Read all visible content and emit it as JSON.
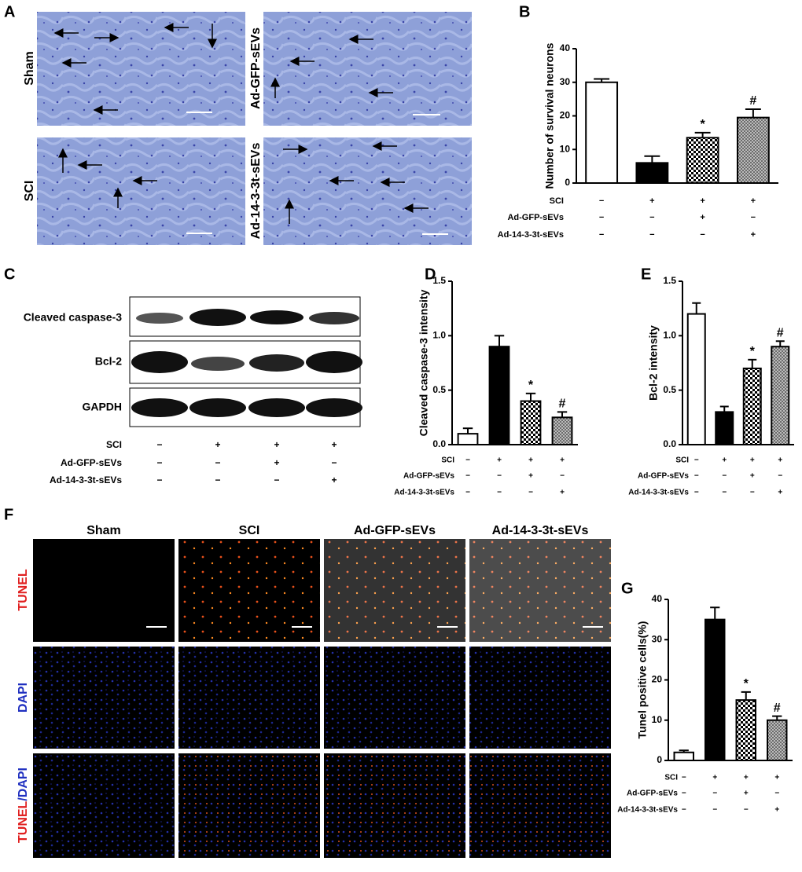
{
  "panel_labels": [
    "A",
    "B",
    "C",
    "D",
    "E",
    "F",
    "G"
  ],
  "panel_a": {
    "row_labels": [
      "Sham",
      "SCI",
      "Ad-GFP-sEVs",
      "Ad-14-3-3t-sEVs"
    ]
  },
  "panel_c": {
    "bands": [
      "Cleaved caspase-3",
      "Bcl-2",
      "GAPDH"
    ]
  },
  "panel_f": {
    "columns": [
      "Sham",
      "SCI",
      "Ad-GFP-sEVs",
      "Ad-14-3-3t-sEVs"
    ],
    "rows": [
      "TUNEL",
      "DAPI"
    ],
    "merged_row": [
      "TUNEL",
      "/DAPI"
    ]
  },
  "conditions": [
    {
      "label": "SCI",
      "marks": [
        "−",
        "+",
        "+",
        "+"
      ]
    },
    {
      "label": "Ad-GFP-sEVs",
      "marks": [
        "−",
        "−",
        "+",
        "−"
      ]
    },
    {
      "label": "Ad-14-3-3t-sEVs",
      "marks": [
        "−",
        "−",
        "−",
        "+"
      ]
    }
  ],
  "chart_data": [
    {
      "type": "bar",
      "panel": "B",
      "y_label": "Number of survival neurons",
      "values": [
        30,
        6,
        13.5,
        19.5
      ],
      "errors": [
        1,
        2,
        1.5,
        2.5
      ],
      "annotations": [
        null,
        null,
        "*",
        "#"
      ],
      "fills": [
        "white",
        "black",
        "checkered",
        "dotted"
      ],
      "ylim": [
        0,
        40
      ],
      "yticks": [
        0,
        10,
        20,
        30,
        40
      ]
    },
    {
      "type": "bar",
      "panel": "D",
      "y_label": "Cleaved caspase-3 intensity",
      "values": [
        0.1,
        0.9,
        0.4,
        0.25
      ],
      "errors": [
        0.05,
        0.1,
        0.07,
        0.05
      ],
      "annotations": [
        null,
        null,
        "*",
        "#"
      ],
      "fills": [
        "white",
        "black",
        "checkered",
        "dotted"
      ],
      "ylim": [
        0,
        1.5
      ],
      "yticks": [
        {
          "value": 0,
          "label": "0.0"
        },
        0.5,
        {
          "value": 1,
          "label": "1.0"
        },
        1.5
      ]
    },
    {
      "type": "bar",
      "panel": "E",
      "y_label": "Bcl-2 intensity",
      "values": [
        1.2,
        0.3,
        0.7,
        0.9
      ],
      "errors": [
        0.1,
        0.05,
        0.08,
        0.05
      ],
      "annotations": [
        null,
        null,
        "*",
        "#"
      ],
      "fills": [
        "white",
        "black",
        "checkered",
        "dotted"
      ],
      "ylim": [
        0,
        1.5
      ],
      "yticks": [
        {
          "value": 0,
          "label": "0.0"
        },
        0.5,
        {
          "value": 1,
          "label": "1.0"
        },
        1.5
      ]
    },
    {
      "type": "bar",
      "panel": "G",
      "y_label": "Tunel positive cells(%)",
      "values": [
        2,
        35,
        15,
        10
      ],
      "errors": [
        0.5,
        3,
        2,
        1
      ],
      "annotations": [
        null,
        null,
        "*",
        "#"
      ],
      "fills": [
        "white",
        "black",
        "checkered",
        "dotted"
      ],
      "ylim": [
        0,
        40
      ],
      "yticks": [
        0,
        10,
        20,
        30,
        40
      ]
    }
  ]
}
